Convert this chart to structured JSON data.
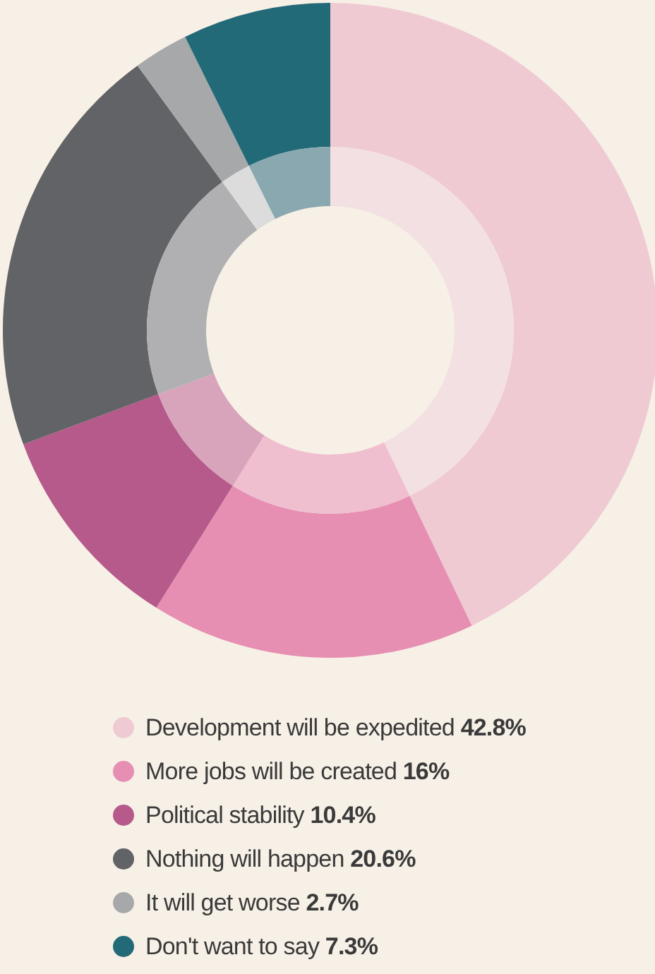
{
  "chart_data": {
    "type": "donut",
    "categories": [
      "Development will be expedited",
      "More jobs will be created",
      "Political stability",
      "Nothing will happen",
      "It will get worse",
      "Don't want to say"
    ],
    "series": [
      {
        "values": [
          42.8,
          16,
          10.4,
          20.6,
          2.7,
          7.3
        ],
        "colors": [
          "#efcad3",
          "#e68fb2",
          "#b55a8a",
          "#626366",
          "#a7a8aa",
          "#236a78"
        ]
      },
      {
        "values": [
          42.8,
          16,
          10.4,
          20.6,
          2.7,
          7.3
        ],
        "colors": [
          "#f3e0e3",
          "#efbfd0",
          "#d8a4bb",
          "#b0b0b2",
          "#dcdcdc",
          "#8aa8b0"
        ]
      }
    ],
    "value_labels": [
      "42.8%",
      "16%",
      "10.4%",
      "20.6%",
      "2.7%",
      "7.3%"
    ],
    "legend": "bottom"
  }
}
